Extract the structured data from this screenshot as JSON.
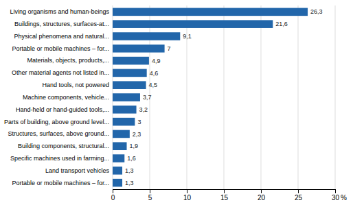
{
  "chart_data": {
    "type": "bar",
    "orientation": "horizontal",
    "categories": [
      "Portable or mobile machines – for...",
      "Land transport vehicles",
      "Specific machines used in farming...",
      "Building components, structural...",
      "Structures, surfaces, above ground...",
      "Parts of building, above ground level...",
      "Hand-held or hand-guided tools,...",
      "Machine components, vehicle...",
      "Hand tools, not powered",
      "Other material agents not listed in...",
      "Materials, objects, products,...",
      "Portable or mobile machines – for...",
      "Physical phenomena and natural...",
      "Buildings, structures, surfaces-at...",
      "Living organisms and human-beings"
    ],
    "values": [
      1.3,
      1.3,
      1.6,
      1.9,
      2.3,
      3.0,
      3.2,
      3.7,
      4.5,
      4.6,
      4.9,
      7.0,
      9.1,
      21.6,
      26.3
    ],
    "value_labels": [
      "1,3",
      "1,3",
      "1,6",
      "1,9",
      "2,3",
      "3",
      "3,2",
      "3,7",
      "4,5",
      "4,6",
      "4,9",
      "7",
      "9,1",
      "21,6",
      "26,3"
    ],
    "data_labels": true,
    "color": "#2266aa",
    "xlabel": "%",
    "xlim": [
      0,
      30
    ],
    "xticks": [
      0,
      5,
      10,
      15,
      20,
      25,
      30
    ],
    "grid": true
  }
}
